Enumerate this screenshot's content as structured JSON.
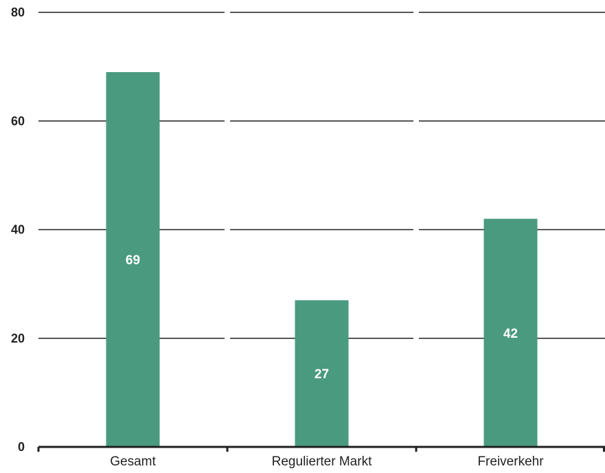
{
  "chart_data": {
    "type": "bar",
    "categories": [
      "Gesamt",
      "Regulierter Markt",
      "Freiverkehr"
    ],
    "values": [
      69,
      27,
      42
    ],
    "data_labels": [
      "69",
      "27",
      "42"
    ],
    "yticks": [
      "0",
      "20",
      "40",
      "60",
      "80"
    ],
    "ylim": [
      0,
      80
    ],
    "title": "",
    "xlabel": "",
    "ylabel": "",
    "grid": true,
    "legend": "none",
    "bar_color": "#4a9a80",
    "grid_color": "#1f1f1f",
    "label_color": "#ffffff"
  }
}
